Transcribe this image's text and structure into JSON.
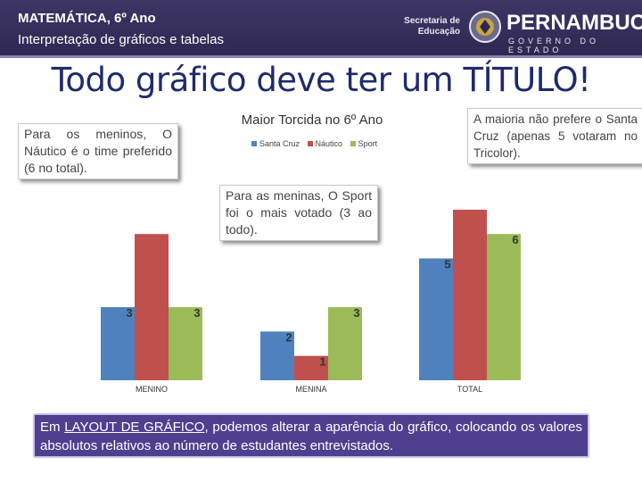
{
  "header": {
    "line1": "MATEMÁTICA, 6º Ano",
    "line2": "Interpretação de gráficos e tabelas",
    "secretaria_line1": "Secretaria de",
    "secretaria_line2": "Educação",
    "state_name": "PERNAMBUCO",
    "state_sub": "GOVERNO DO ESTADO"
  },
  "main_title": "Todo gráfico deve ter um TÍTULO!",
  "callouts": {
    "boys": "Para os meninos, O Náutico é o time preferido (6 no total).",
    "girls": "Para as meninas, O Sport foi o mais votado (3 ao todo).",
    "total": "A maioria não prefere o Santa Cruz (apenas 5 votaram no Tricolor)."
  },
  "footer": {
    "prefix": "Em ",
    "highlight": "LAYOUT DE GRÁFICO",
    "rest": ", podemos alterar a aparência do gráfico, colocando os valores absolutos relativos ao número de estudantes entrevistados."
  },
  "chart_data": {
    "type": "bar",
    "title": "Maior Torcida no 6º Ano",
    "categories": [
      "MENINO",
      "MENINA",
      "TOTAL"
    ],
    "series": [
      {
        "name": "Santa Cruz",
        "color": "#4f81bd",
        "values": [
          3,
          2,
          5
        ]
      },
      {
        "name": "Náutico",
        "color": "#c0504d",
        "values": [
          6,
          1,
          7
        ]
      },
      {
        "name": "Sport",
        "color": "#9bbb59",
        "values": [
          3,
          3,
          6
        ]
      }
    ],
    "visible_labels": [
      [
        "3",
        "",
        "3"
      ],
      [
        "2",
        "1",
        "3"
      ],
      [
        "5",
        "",
        "6"
      ]
    ],
    "legend": "top",
    "grid": false,
    "ylim": [
      0,
      7
    ]
  }
}
